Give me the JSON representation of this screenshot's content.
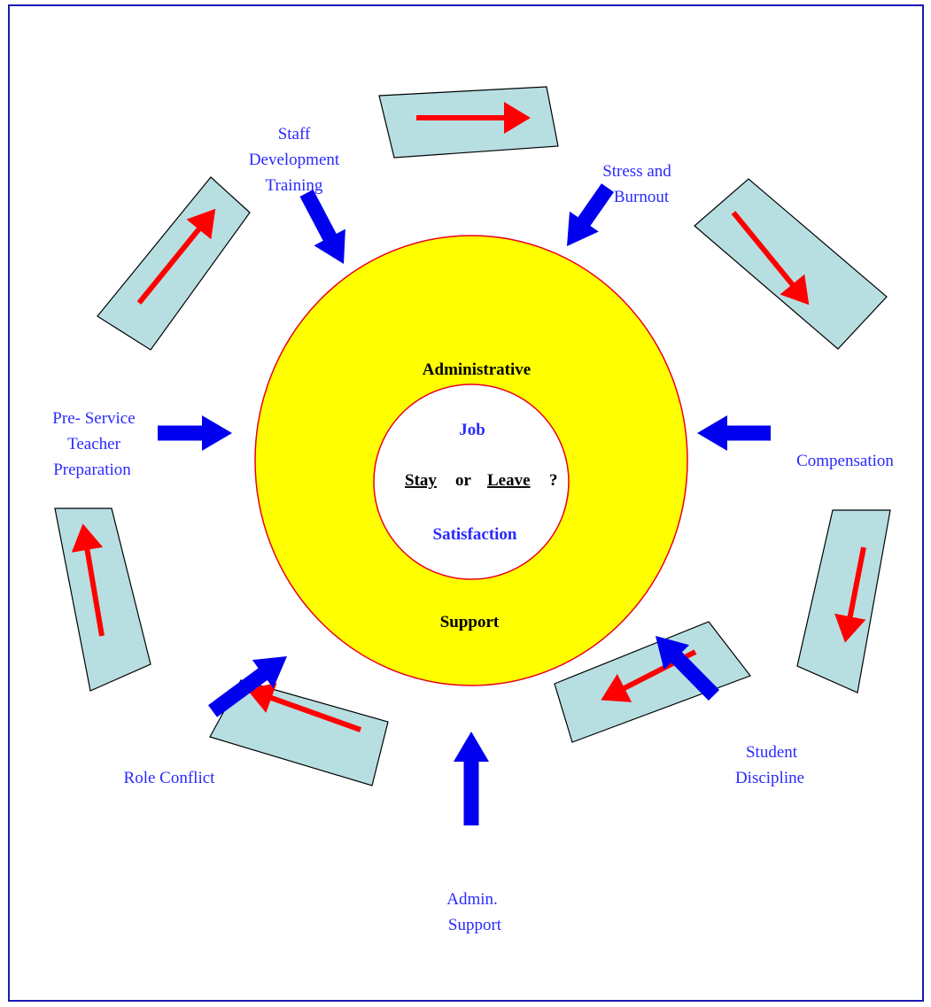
{
  "center": {
    "outer_top": "Administrative",
    "outer_bottom": "Support",
    "inner_top": "Job",
    "inner_bottom": "Satisfaction",
    "question": {
      "stay": "Stay",
      "or": "or",
      "leave": "Leave",
      "mark": "?"
    }
  },
  "factors": {
    "staff_dev": [
      "Staff",
      "Development",
      "Training"
    ],
    "stress": [
      "Stress and",
      "Burnout"
    ],
    "preservice": [
      "Pre- Service",
      "Teacher",
      "Preparation"
    ],
    "compensation": [
      "Compensation"
    ],
    "student": [
      "Student",
      "Discipline"
    ],
    "admin": [
      "Admin.",
      "Support"
    ],
    "role": [
      "Role Conflict"
    ]
  },
  "colors": {
    "outer_circle": "#ffff00",
    "circle_stroke": "#e8001e",
    "segment_fill": "#b7dfe2",
    "cycle_arrow": "#ff0000",
    "factor_arrow": "#0000ee",
    "factor_text": "#2a2aff",
    "frame": "#1a1ab4"
  }
}
